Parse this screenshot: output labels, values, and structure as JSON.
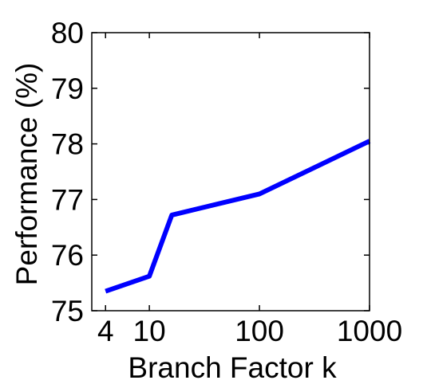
{
  "chart_data": {
    "type": "line",
    "xlabel": "Branch Factor k",
    "ylabel": "Performance (%)",
    "x_scale": "log",
    "xlim": [
      3,
      1000
    ],
    "ylim": [
      75,
      80
    ],
    "x_ticks": [
      4,
      10,
      100,
      1000
    ],
    "x_tick_labels": [
      "4",
      "10",
      "100",
      "1000"
    ],
    "y_ticks": [
      75,
      76,
      77,
      78,
      79,
      80
    ],
    "y_tick_labels": [
      "75",
      "76",
      "77",
      "78",
      "79",
      "80"
    ],
    "grid": false,
    "series": [
      {
        "color": "#0000ff",
        "x": [
          4,
          10,
          16,
          100,
          1000
        ],
        "y": [
          75.35,
          75.62,
          76.72,
          77.1,
          78.05
        ]
      }
    ]
  }
}
